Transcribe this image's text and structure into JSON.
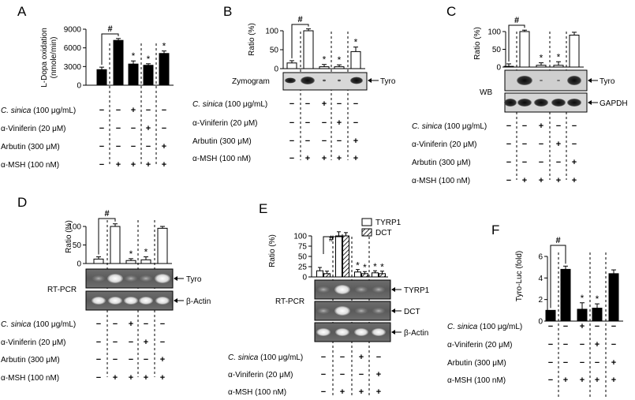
{
  "figure": {
    "treatment_labels": {
      "c_sinica": "C. sinica (100 μg/mL)",
      "c_sinica_name": "C. sinica",
      "c_sinica_dose": "(100 μg/mL)",
      "viniferin": "α-Viniferin (20 μM)",
      "arbutin": "Arbutin (300 μM)",
      "msh": "α-MSH (100 nM)"
    },
    "signif": {
      "hash": "#",
      "star": "*"
    }
  },
  "panels": {
    "A": {
      "letter": "A",
      "ylabel_line1": "L-Dopa oxidation",
      "ylabel_line2": "(nmole/min)"
    },
    "B": {
      "letter": "B",
      "ylabel": "Ratio (%)",
      "band_label": "Zymogram",
      "arrow_label": "Tyro"
    },
    "C": {
      "letter": "C",
      "ylabel": "Ratio (%)",
      "method": "WB",
      "bands": [
        "Tyro",
        "GAPDH"
      ]
    },
    "D": {
      "letter": "D",
      "ylabel": "Ratio (%)",
      "method": "RT-PCR",
      "bands": [
        "Tyro",
        "β-Actin"
      ]
    },
    "E": {
      "letter": "E",
      "ylabel": "Ratio (%)",
      "method": "RT-PCR",
      "bands": [
        "TYRP1",
        "DCT",
        "β-Actin"
      ],
      "legend": [
        "TYRP1",
        "DCT"
      ]
    },
    "F": {
      "letter": "F",
      "ylabel": "Tyro-Luc (fold)"
    }
  },
  "chart_data": [
    {
      "panel": "A",
      "type": "bar",
      "title": "",
      "xlabel": "",
      "ylabel": "L-Dopa oxidation (nmole/min)",
      "ylim": [
        0,
        9000
      ],
      "yticks": [
        0,
        3000,
        6000,
        9000
      ],
      "values": [
        2500,
        7200,
        3400,
        3200,
        5100
      ],
      "errors": [
        400,
        300,
        500,
        250,
        400
      ],
      "fill": [
        "solid",
        "solid",
        "solid",
        "solid",
        "solid"
      ],
      "markers": [
        "",
        "#",
        "*",
        "*",
        "*"
      ],
      "treatments": {
        "c_sinica": [
          "−",
          "−",
          "+",
          "−",
          "−"
        ],
        "viniferin": [
          "−",
          "−",
          "−",
          "+",
          "−"
        ],
        "arbutin": [
          "−",
          "−",
          "−",
          "−",
          "+"
        ],
        "msh": [
          "−",
          "+",
          "+",
          "+",
          "+"
        ]
      }
    },
    {
      "panel": "B",
      "type": "bar",
      "title": "",
      "xlabel": "",
      "ylabel": "Ratio (%)",
      "ylim": [
        0,
        100
      ],
      "yticks": [
        0,
        50,
        100
      ],
      "values": [
        15,
        100,
        5,
        5,
        45
      ],
      "errors": [
        6,
        5,
        6,
        5,
        12
      ],
      "fill": [
        "open",
        "open",
        "open",
        "open",
        "open"
      ],
      "markers": [
        "",
        "#",
        "*",
        "*",
        "*"
      ],
      "treatments": {
        "c_sinica": [
          "−",
          "−",
          "+",
          "−",
          "−"
        ],
        "viniferin": [
          "−",
          "−",
          "−",
          "+",
          "−"
        ],
        "arbutin": [
          "−",
          "−",
          "−",
          "−",
          "+"
        ],
        "msh": [
          "−",
          "+",
          "+",
          "+",
          "+"
        ]
      }
    },
    {
      "panel": "C",
      "type": "bar",
      "title": "",
      "xlabel": "",
      "ylabel": "Ratio (%)",
      "ylim": [
        0,
        100
      ],
      "yticks": [
        0,
        50,
        100
      ],
      "values": [
        2,
        100,
        5,
        5,
        90
      ],
      "errors": [
        7,
        4,
        7,
        10,
        8
      ],
      "fill": [
        "open",
        "open",
        "open",
        "open",
        "open"
      ],
      "markers": [
        "",
        "#",
        "*",
        "*",
        ""
      ],
      "treatments": {
        "c_sinica": [
          "−",
          "−",
          "+",
          "−",
          "−"
        ],
        "viniferin": [
          "−",
          "−",
          "−",
          "+",
          "−"
        ],
        "arbutin": [
          "−",
          "−",
          "−",
          "−",
          "+"
        ],
        "msh": [
          "−",
          "+",
          "+",
          "+",
          "+"
        ]
      }
    },
    {
      "panel": "D",
      "type": "bar",
      "title": "",
      "xlabel": "",
      "ylabel": "Ratio (%)",
      "ylim": [
        0,
        100
      ],
      "yticks": [
        0,
        50,
        100
      ],
      "values": [
        12,
        100,
        8,
        10,
        95
      ],
      "errors": [
        6,
        7,
        5,
        8,
        5
      ],
      "fill": [
        "open",
        "open",
        "open",
        "open",
        "open"
      ],
      "markers": [
        "",
        "#",
        "*",
        "*",
        ""
      ],
      "treatments": {
        "c_sinica": [
          "−",
          "−",
          "+",
          "−",
          "−"
        ],
        "viniferin": [
          "−",
          "−",
          "−",
          "+",
          "−"
        ],
        "arbutin": [
          "−",
          "−",
          "−",
          "−",
          "+"
        ],
        "msh": [
          "−",
          "+",
          "+",
          "+",
          "+"
        ]
      }
    },
    {
      "panel": "E",
      "type": "bar",
      "title": "",
      "xlabel": "",
      "ylabel": "Ratio (%)",
      "ylim": [
        0,
        100
      ],
      "yticks": [
        0,
        25,
        50,
        75,
        100
      ],
      "series": [
        {
          "name": "TYRP1",
          "fill": "open",
          "values": [
            15,
            100,
            12,
            10
          ],
          "errors": [
            8,
            10,
            6,
            5
          ],
          "markers": [
            "",
            "",
            "*",
            "*"
          ]
        },
        {
          "name": "DCT",
          "fill": "hatched",
          "values": [
            8,
            100,
            8,
            8
          ],
          "errors": [
            6,
            8,
            5,
            6
          ],
          "markers": [
            "",
            "",
            "*",
            "*"
          ]
        }
      ],
      "group_markers": [
        "",
        "#",
        "",
        ""
      ],
      "treatments": {
        "c_sinica": [
          "−",
          "−",
          "+",
          "−"
        ],
        "viniferin": [
          "−",
          "−",
          "−",
          "+"
        ],
        "msh": [
          "−",
          "+",
          "+",
          "+"
        ]
      }
    },
    {
      "panel": "F",
      "type": "bar",
      "title": "",
      "xlabel": "",
      "ylabel": "Tyro-Luc (fold)",
      "ylim": [
        0,
        6
      ],
      "yticks": [
        0,
        2,
        4,
        6
      ],
      "values": [
        1,
        4.8,
        1.1,
        1.2,
        4.4
      ],
      "errors": [
        0,
        0.3,
        0.6,
        0.4,
        0.35
      ],
      "fill": [
        "solid",
        "solid",
        "solid",
        "solid",
        "solid"
      ],
      "markers": [
        "",
        "#",
        "*",
        "*",
        ""
      ],
      "treatments": {
        "c_sinica": [
          "−",
          "−",
          "+",
          "−",
          "−"
        ],
        "viniferin": [
          "−",
          "−",
          "−",
          "+",
          "−"
        ],
        "arbutin": [
          "−",
          "−",
          "−",
          "−",
          "+"
        ],
        "msh": [
          "−",
          "+",
          "+",
          "+",
          "+"
        ]
      }
    }
  ]
}
